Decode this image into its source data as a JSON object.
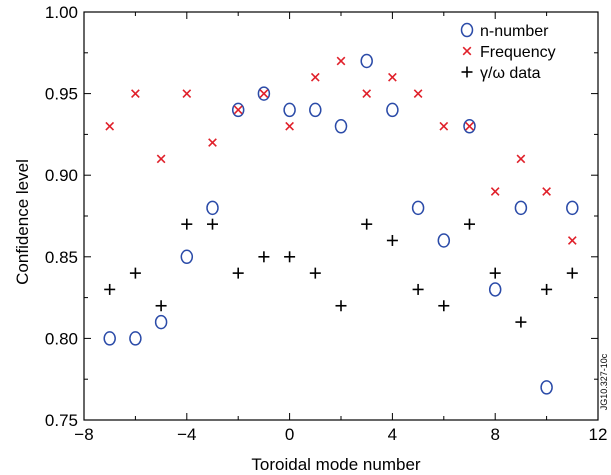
{
  "chart_data": {
    "type": "scatter",
    "title": "",
    "xlabel": "Toroidal mode number",
    "ylabel": "Confidence level",
    "xlim": [
      -8,
      12
    ],
    "ylim": [
      0.75,
      1.0
    ],
    "xticks": [
      -8,
      -4,
      0,
      4,
      8,
      12
    ],
    "xtick_labels": [
      "−8",
      "−4",
      "0",
      "4",
      "8",
      "12"
    ],
    "yticks": [
      0.75,
      0.8,
      0.85,
      0.9,
      0.95,
      1.0
    ],
    "ytick_labels": [
      "0.75",
      "0.80",
      "0.85",
      "0.90",
      "0.95",
      "1.00"
    ],
    "grid": false,
    "legend_position": "top-right",
    "side_note": "JG10.327-10c",
    "series": [
      {
        "name": "n-number",
        "marker": "circle",
        "color": "#2b4ba8",
        "x": [
          -7,
          -6,
          -5,
          -4,
          -3,
          -2,
          -1,
          0,
          1,
          2,
          3,
          4,
          5,
          6,
          7,
          8,
          9,
          10,
          11
        ],
        "y": [
          0.8,
          0.8,
          0.81,
          0.85,
          0.88,
          0.94,
          0.95,
          0.94,
          0.94,
          0.93,
          0.97,
          0.94,
          0.88,
          0.86,
          0.93,
          0.83,
          0.88,
          0.77,
          0.88
        ]
      },
      {
        "name": "Frequency",
        "marker": "x",
        "color": "#e0202a",
        "x": [
          -7,
          -6,
          -5,
          -4,
          -3,
          -2,
          -1,
          0,
          1,
          2,
          3,
          4,
          5,
          6,
          7,
          8,
          9,
          10,
          11
        ],
        "y": [
          0.93,
          0.95,
          0.91,
          0.95,
          0.92,
          0.94,
          0.95,
          0.93,
          0.96,
          0.97,
          0.95,
          0.96,
          0.95,
          0.93,
          0.93,
          0.89,
          0.91,
          0.89,
          0.86
        ]
      },
      {
        "name": "γ/ω data",
        "marker": "plus",
        "color": "#000000",
        "x": [
          -7,
          -6,
          -5,
          -4,
          -3,
          -2,
          -1,
          0,
          1,
          2,
          3,
          4,
          5,
          6,
          7,
          8,
          9,
          10,
          11
        ],
        "y": [
          0.83,
          0.84,
          0.82,
          0.87,
          0.87,
          0.84,
          0.85,
          0.85,
          0.84,
          0.82,
          0.87,
          0.86,
          0.83,
          0.82,
          0.87,
          0.84,
          0.81,
          0.83,
          0.84
        ]
      }
    ]
  }
}
